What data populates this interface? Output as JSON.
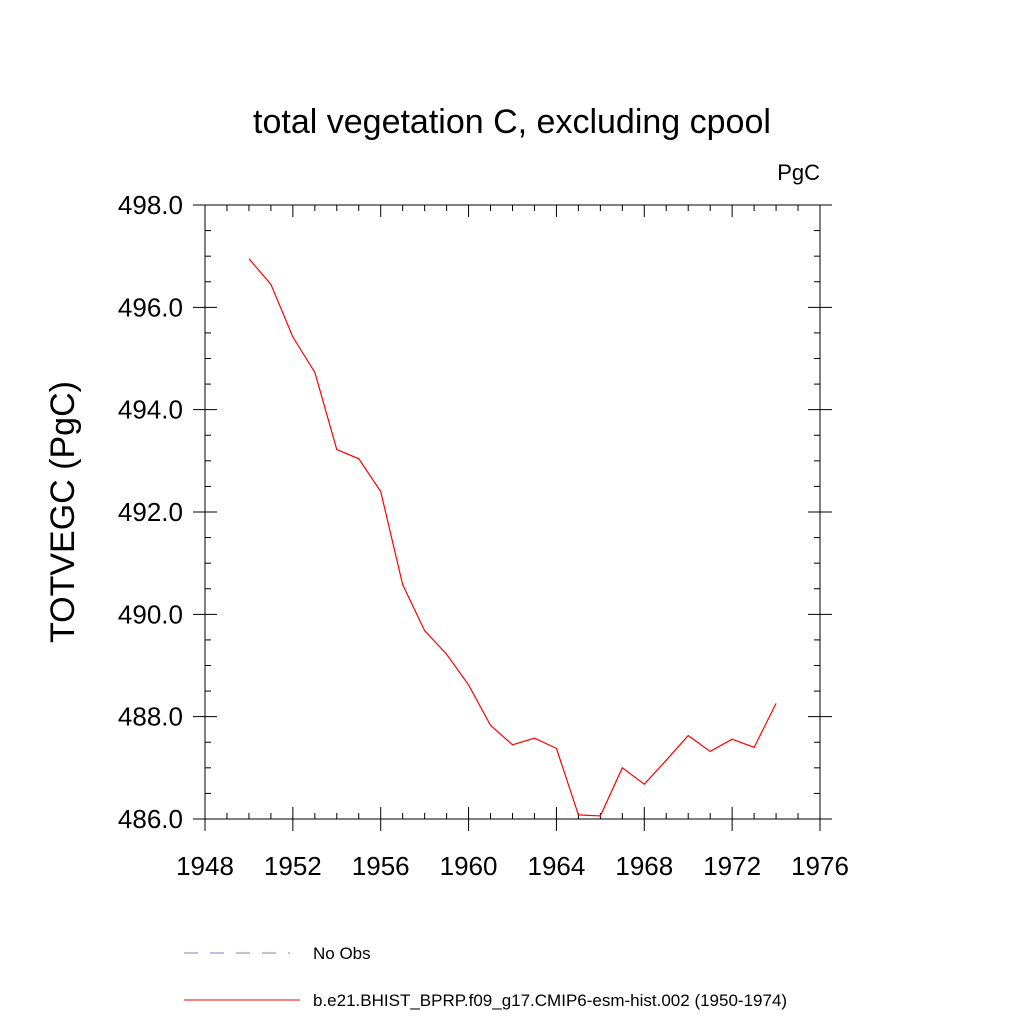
{
  "chart_data": {
    "type": "line",
    "title": "total vegetation C, excluding cpool",
    "units_label": "PgC",
    "ylabel": "TOTVEGC  (PgC)",
    "xlabel": "",
    "xlim": [
      1948,
      1976
    ],
    "ylim": [
      486.0,
      498.0
    ],
    "x_ticks": [
      1948,
      1952,
      1956,
      1960,
      1964,
      1968,
      1972,
      1976
    ],
    "x_tick_labels": [
      "1948",
      "1952",
      "1956",
      "1960",
      "1964",
      "1968",
      "1972",
      "1976"
    ],
    "y_ticks": [
      486,
      488,
      490,
      492,
      494,
      496,
      498
    ],
    "y_tick_labels": [
      "486.0",
      "488.0",
      "490.0",
      "492.0",
      "494.0",
      "496.0",
      "498.0"
    ],
    "grid": false,
    "legend_position": "bottom",
    "series": [
      {
        "name": "b.e21.BHIST_BPRP.f09_g17.CMIP6-esm-hist.002 (1950-1974)",
        "color": "#ff0000",
        "style": "solid",
        "x": [
          1950,
          1951,
          1952,
          1953,
          1954,
          1955,
          1956,
          1957,
          1958,
          1959,
          1960,
          1961,
          1962,
          1963,
          1964,
          1965,
          1966,
          1967,
          1968,
          1969,
          1970,
          1971,
          1972,
          1973,
          1974
        ],
        "y": [
          496.95,
          496.45,
          495.42,
          494.73,
          493.22,
          493.04,
          492.4,
          490.58,
          489.68,
          489.22,
          488.62,
          487.83,
          487.45,
          487.58,
          487.38,
          486.08,
          486.06,
          487.0,
          486.68,
          487.15,
          487.63,
          487.32,
          487.56,
          487.4,
          488.26
        ]
      },
      {
        "name": "No Obs",
        "color": "#7f7fbf",
        "style": "dashed",
        "x": [],
        "y": []
      }
    ]
  }
}
